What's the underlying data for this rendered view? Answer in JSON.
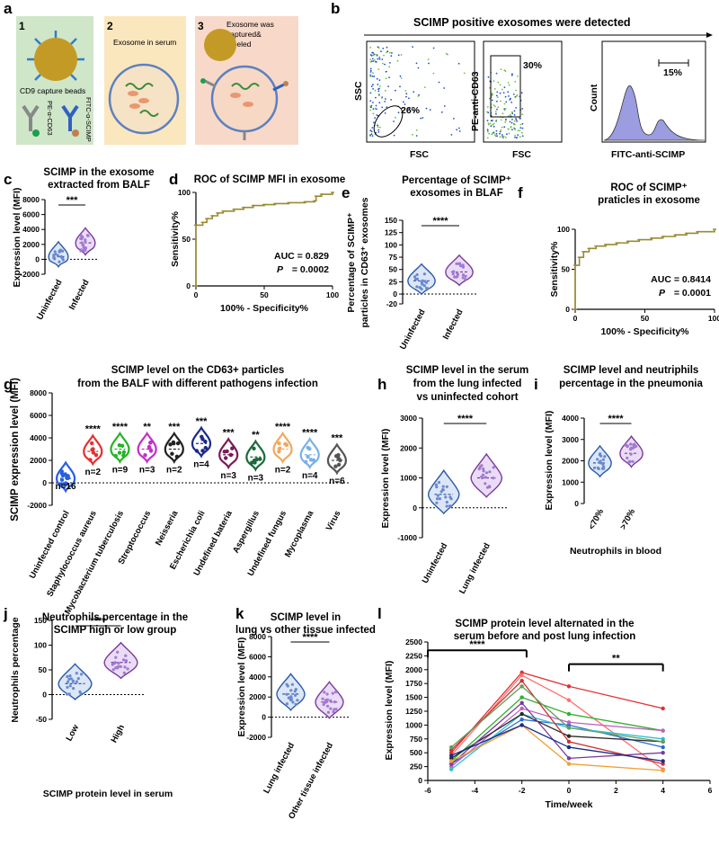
{
  "figure": {
    "panel_labels": [
      "a",
      "b",
      "c",
      "d",
      "e",
      "f",
      "g",
      "h",
      "i",
      "j",
      "k",
      "l"
    ],
    "panel_a": {
      "steps": [
        "1",
        "2",
        "3"
      ],
      "beads_label": "CD9 capture beads",
      "ab1_label": "PE-α-CD63",
      "ab2_label": "FITC-α-SCIMP",
      "serum_label": "Exosome in serum",
      "captured_label_1": "Exosome was",
      "captured_label_2": "captured&",
      "captured_label_3": "labeled",
      "colors": {
        "step1_bg": "#cfe6c8",
        "step2_bg": "#fbe7bd",
        "step3_bg": "#f8d9c9",
        "bead": "#c49a26",
        "membrane": "#5b80c2"
      }
    },
    "panel_b": {
      "title": "SCIMP positive exosomes were detected",
      "plot1": {
        "y": "SSC",
        "x": "FSC",
        "gate": "26%"
      },
      "plot2": {
        "y": "PE-anti-CD63",
        "x": "FSC",
        "gate": "30%"
      },
      "plot3": {
        "y": "Count",
        "x": "FITC-anti-SCIMP",
        "gate": "15%"
      }
    }
  },
  "chart_data": [
    {
      "panel": "c",
      "type": "violin",
      "title_lines": [
        "SCIMP in the exosome",
        "extracted from BALF"
      ],
      "ylabel": "Expression level (MFI)",
      "ylim": [
        -2000,
        8000
      ],
      "yticks": [
        "-2000",
        "0",
        "2000",
        "4000",
        "6000",
        "8000"
      ],
      "categories": [
        "Uninfected",
        "Infected"
      ],
      "medians": [
        350,
        2200
      ],
      "significance": "***"
    },
    {
      "panel": "d",
      "type": "line",
      "title": "ROC of SCIMP MFI in exosome",
      "ylabel": "Sensitivity%",
      "xlabel": "100% - Specificity%",
      "xlim": [
        0,
        100
      ],
      "ylim": [
        0,
        100
      ],
      "xticks": [
        "0",
        "50",
        "100"
      ],
      "yticks": [
        "0",
        "50",
        "100"
      ],
      "auc_text": "AUC = 0.829",
      "p_label": "P",
      "p_text": "= 0.0002",
      "x": [
        0,
        0,
        5,
        8,
        12,
        16,
        20,
        28,
        35,
        42,
        50,
        58,
        68,
        80,
        87,
        88,
        92,
        100
      ],
      "y": [
        0,
        65,
        68,
        72,
        75,
        78,
        80,
        82,
        84,
        86,
        87,
        88,
        89,
        90,
        91,
        96,
        98,
        100
      ]
    },
    {
      "panel": "e",
      "type": "violin",
      "title_lines": [
        "Percentage of SCIMP⁺",
        "exosomes in BLAF"
      ],
      "ylabel_lines": [
        "Percentage of SCIMP⁺",
        "particles in CD63⁺ exosomes"
      ],
      "ylim": [
        -20,
        150
      ],
      "yticks": [
        "-20",
        "0",
        "25",
        "50",
        "75",
        "100",
        "125",
        "150"
      ],
      "categories": [
        "Uninfected",
        "Infected"
      ],
      "medians": [
        27,
        45
      ],
      "significance": "****"
    },
    {
      "panel": "f",
      "type": "line",
      "title_lines": [
        "ROC of SCIMP⁺",
        "praticles in exosome"
      ],
      "ylabel": "Sensitivity%",
      "xlabel": "100% - Specificity%",
      "xlim": [
        0,
        100
      ],
      "ylim": [
        0,
        100
      ],
      "xticks": [
        "0",
        "50",
        "100"
      ],
      "yticks": [
        "0",
        "50",
        "100"
      ],
      "auc_text": "AUC = 0.8414",
      "p_label": "P",
      "p_text": "= 0.0001",
      "x": [
        0,
        0,
        3,
        6,
        10,
        15,
        22,
        30,
        38,
        46,
        55,
        63,
        72,
        80,
        88,
        100
      ],
      "y": [
        0,
        55,
        65,
        72,
        76,
        79,
        81,
        83,
        85,
        87,
        89,
        91,
        93,
        95,
        97,
        100
      ]
    },
    {
      "panel": "g",
      "type": "violin",
      "title_lines": [
        "SCIMP level on the CD63+ particles",
        "from the BALF with different pathogens infection"
      ],
      "ylabel": "SCIMP expression level (MFI)",
      "ylim": [
        -2000,
        8000
      ],
      "yticks": [
        "-2000",
        "0",
        "2000",
        "4000",
        "6000",
        "8000"
      ],
      "categories": [
        "Uninfected control",
        "Staphylococcus aureus",
        "Mycobacterium tuberculosis",
        "Streptococcus",
        "Neisseria",
        "Escherichia coli",
        "Undefined bateria",
        "Aspergillus",
        "Undefined fungus",
        "Mycoplasma",
        "Virus"
      ],
      "n_labels": [
        "n=16",
        "n=2",
        "n=9",
        "n=3",
        "n=2",
        "n=4",
        "n=3",
        "n=3",
        "n=2",
        "n=4",
        "n=6"
      ],
      "significance": [
        "",
        "****",
        "****",
        "**",
        "***",
        "***",
        "***",
        "**",
        "****",
        "****",
        "***"
      ],
      "medians": [
        400,
        2800,
        3000,
        3000,
        3000,
        3500,
        2500,
        2300,
        3000,
        2500,
        2000
      ],
      "colors": [
        "#2a5ee0",
        "#e53030",
        "#25b325",
        "#c030c8",
        "#222222",
        "#1a2a8a",
        "#7a1a5a",
        "#1a6a3a",
        "#f0a860",
        "#7ab0e8",
        "#555555"
      ]
    },
    {
      "panel": "h",
      "type": "violin",
      "title_lines": [
        "SCIMP level in the serum",
        "from the lung infected",
        "vs uninfected cohort"
      ],
      "ylabel": "Expression level (MFI)",
      "ylim": [
        -1000,
        3000
      ],
      "yticks": [
        "-1000",
        "0",
        "1000",
        "2000",
        "3000"
      ],
      "categories": [
        "Uninfected",
        "Lung infected"
      ],
      "medians": [
        450,
        1000
      ],
      "significance": "****"
    },
    {
      "panel": "i",
      "type": "violin",
      "title_lines": [
        "SCIMP level and neutriphils",
        "percentage in the pneumonia"
      ],
      "ylabel": "Expression level (MFI)",
      "xlabel": "Neutrophils in blood",
      "ylim": [
        0,
        4000
      ],
      "yticks": [
        "0",
        "1000",
        "2000",
        "3000",
        "4000"
      ],
      "categories": [
        "<70%",
        ">70%"
      ],
      "medians": [
        1900,
        2350
      ],
      "significance": "****"
    },
    {
      "panel": "j",
      "type": "violin",
      "title_lines": [
        "Neutrophils percentage in the",
        "SCIMP high or low group"
      ],
      "ylabel": "Neutrophils percentage",
      "xlabel": "SCIMP protein level in serum",
      "ylim": [
        -50,
        150
      ],
      "yticks": [
        "-50",
        "0",
        "50",
        "100",
        "150"
      ],
      "categories": [
        "Low",
        "High"
      ],
      "medians": [
        22,
        65
      ],
      "significance": "****"
    },
    {
      "panel": "k",
      "type": "violin",
      "title_lines": [
        "SCIMP level in",
        "lung vs other tissue infected"
      ],
      "ylabel": "Expression level (MFI)",
      "ylim": [
        -2000,
        8000
      ],
      "yticks": [
        "-2000",
        "0",
        "2000",
        "4000",
        "6000",
        "8000"
      ],
      "categories": [
        "Lung infected",
        "Other tissue infected"
      ],
      "medians": [
        2300,
        1500
      ],
      "significance": "****"
    },
    {
      "panel": "l",
      "type": "line",
      "title_lines": [
        "SCIMP protein level alternated in the",
        "serum before and post lung infection"
      ],
      "ylabel": "Expression level (MFI)",
      "xlabel": "Time/week",
      "xlim": [
        -6,
        6
      ],
      "ylim": [
        0,
        2500
      ],
      "xticks": [
        "-6",
        "-4",
        "-2",
        "0",
        "2",
        "4",
        "6"
      ],
      "yticks": [
        "0",
        "250",
        "500",
        "750",
        "1000",
        "1250",
        "1500",
        "1750",
        "2000",
        "2250",
        "2500"
      ],
      "significance": [
        "****",
        "**"
      ],
      "x": [
        -5,
        -2,
        0,
        4
      ],
      "series": [
        {
          "color": "#e03030",
          "values": [
            500,
            1950,
            1700,
            1300
          ]
        },
        {
          "color": "#ff7070",
          "values": [
            450,
            1900,
            1450,
            200
          ]
        },
        {
          "color": "#30b030",
          "values": [
            350,
            1500,
            1200,
            900
          ]
        },
        {
          "color": "#2a6ad0",
          "values": [
            300,
            1100,
            1000,
            600
          ]
        },
        {
          "color": "#c060c0",
          "values": [
            250,
            1300,
            1050,
            900
          ]
        },
        {
          "color": "#30c0d0",
          "values": [
            200,
            1200,
            950,
            750
          ]
        },
        {
          "color": "#2a2a2a",
          "values": [
            400,
            1200,
            800,
            700
          ]
        },
        {
          "color": "#7a3a9a",
          "values": [
            300,
            1400,
            400,
            500
          ]
        },
        {
          "color": "#f0a030",
          "values": [
            350,
            1000,
            300,
            180
          ]
        },
        {
          "color": "#d03030",
          "values": [
            550,
            1800,
            700,
            300
          ]
        },
        {
          "color": "#1a2a8a",
          "values": [
            450,
            1000,
            600,
            350
          ]
        },
        {
          "color": "#60a060",
          "values": [
            600,
            1700,
            950,
            700
          ]
        }
      ]
    }
  ]
}
